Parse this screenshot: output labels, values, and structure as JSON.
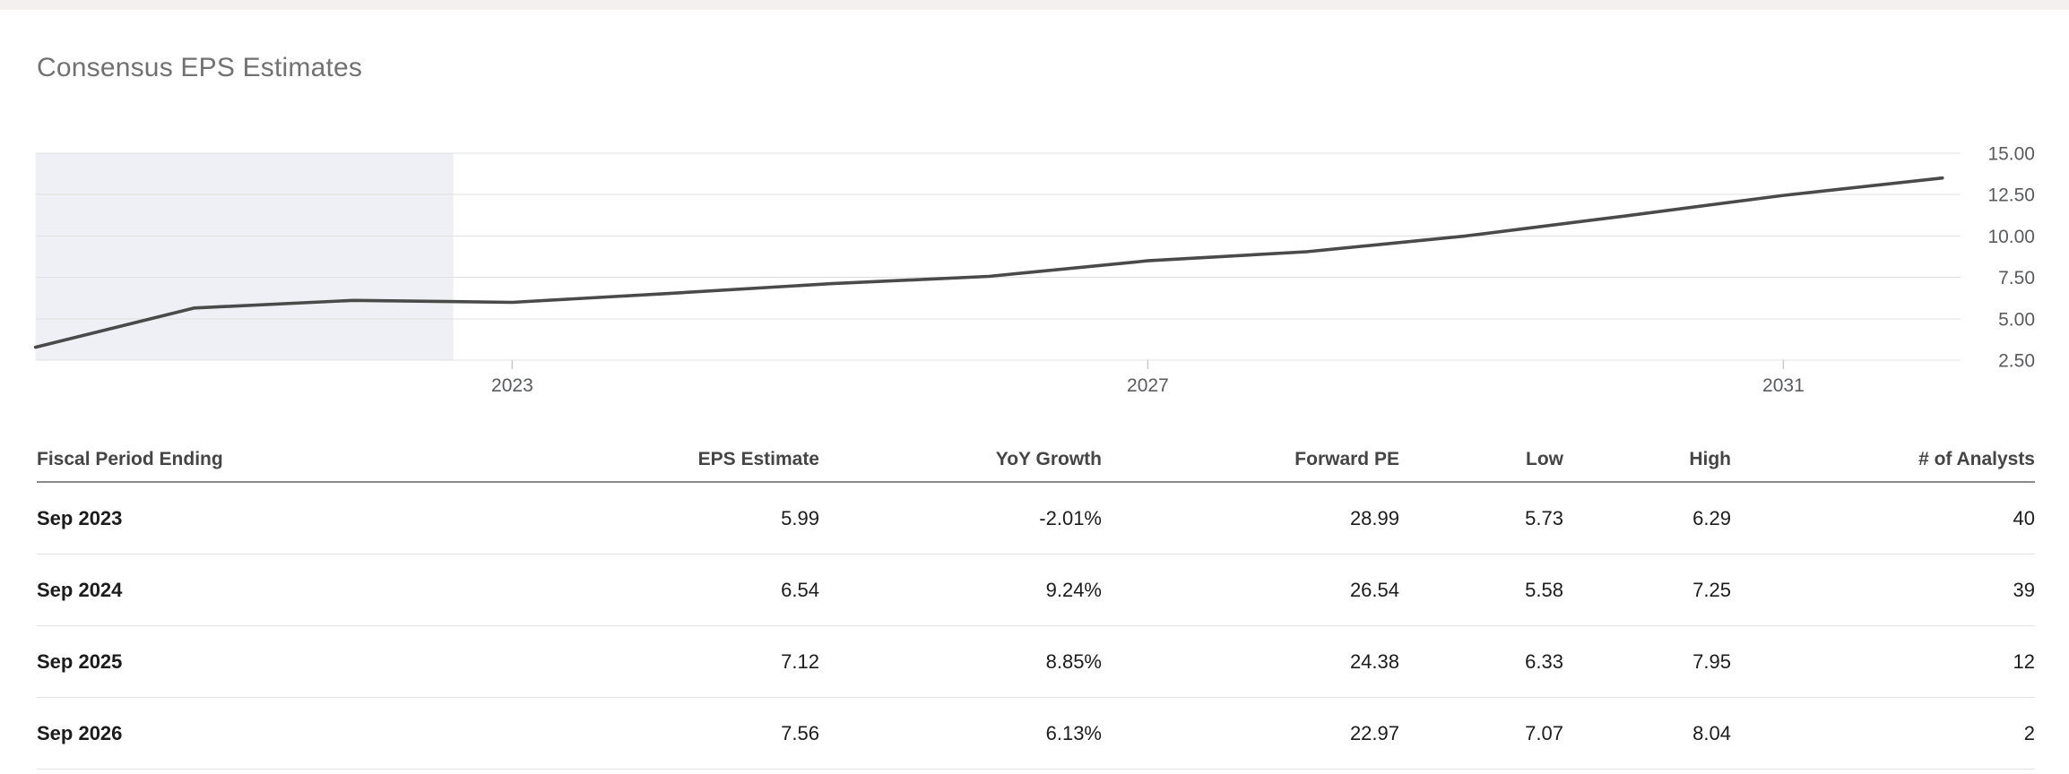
{
  "page": {
    "title": "Consensus EPS Estimates"
  },
  "chart_data": {
    "type": "line",
    "title": "Consensus EPS Estimates",
    "xlabel": "",
    "ylabel": "",
    "x": [
      2020,
      2021,
      2022,
      2023,
      2024,
      2025,
      2026,
      2027,
      2028,
      2029,
      2030,
      2031,
      2032
    ],
    "values": [
      3.28,
      5.65,
      6.11,
      5.99,
      6.54,
      7.12,
      7.56,
      8.5,
      9.05,
      10.0,
      11.2,
      12.45,
      13.5
    ],
    "series_name": "EPS Estimate",
    "xlim": [
      2020,
      2032.2
    ],
    "ylim": [
      2.5,
      15.0
    ],
    "x_tick_values": [
      2023,
      2027,
      2031
    ],
    "x_tick_labels": [
      "2023",
      "2027",
      "2031"
    ],
    "y_tick_values": [
      15,
      12.5,
      10,
      7.5,
      5,
      2.5
    ],
    "y_tick_labels": [
      "15.00",
      "12.50",
      "10.00",
      "7.50",
      "5.00",
      "2.50"
    ],
    "y_axis_position": "right",
    "grid": true,
    "legend": false,
    "shaded_region": {
      "x_start": 2020,
      "x_end": 2022.63
    },
    "colors": {
      "line": "#4a4a4a",
      "grid": "#e0e0e0",
      "shade": "#eef0f5",
      "axis_text": "#595b5e",
      "tick": "#c9c9c9"
    }
  },
  "table": {
    "columns": [
      {
        "label": "Fiscal Period Ending",
        "align": "left"
      },
      {
        "label": "EPS Estimate",
        "align": "right"
      },
      {
        "label": "YoY Growth",
        "align": "right"
      },
      {
        "label": "Forward PE",
        "align": "right"
      },
      {
        "label": "Low",
        "align": "right"
      },
      {
        "label": "High",
        "align": "right"
      },
      {
        "label": "# of Analysts",
        "align": "right"
      }
    ],
    "rows": [
      {
        "cells": [
          "Sep 2023",
          "5.99",
          "-2.01%",
          "28.99",
          "5.73",
          "6.29",
          "40"
        ]
      },
      {
        "cells": [
          "Sep 2024",
          "6.54",
          "9.24%",
          "26.54",
          "5.58",
          "7.25",
          "39"
        ]
      },
      {
        "cells": [
          "Sep 2025",
          "7.12",
          "8.85%",
          "24.38",
          "6.33",
          "7.95",
          "12"
        ]
      },
      {
        "cells": [
          "Sep 2026",
          "7.56",
          "6.13%",
          "22.97",
          "7.07",
          "8.04",
          "2"
        ]
      }
    ]
  }
}
